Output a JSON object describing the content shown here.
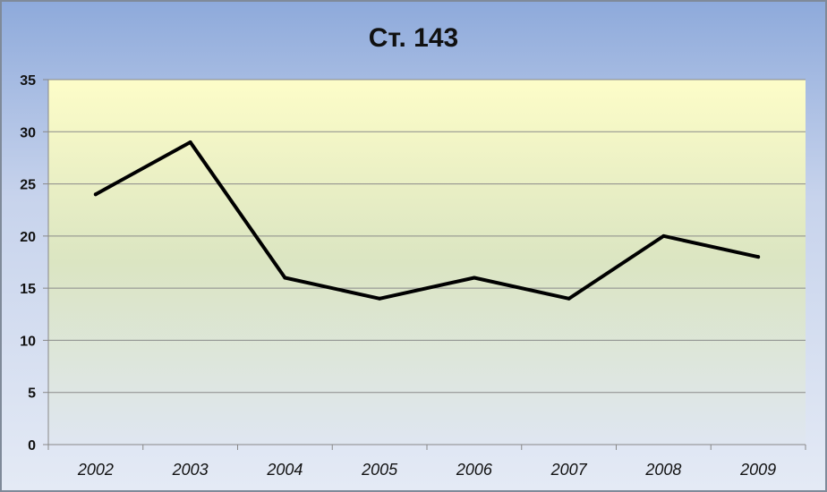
{
  "chart_data": {
    "type": "line",
    "title": "Ст. 143",
    "xlabel": "",
    "ylabel": "",
    "categories": [
      "2002",
      "2003",
      "2004",
      "2005",
      "2006",
      "2007",
      "2008",
      "2009"
    ],
    "series": [
      {
        "values": [
          24,
          29,
          16,
          14,
          16,
          14,
          20,
          18
        ]
      }
    ],
    "ylim": [
      0,
      35
    ],
    "yticks": [
      0,
      5,
      10,
      15,
      20,
      25,
      30,
      35
    ],
    "grid": true,
    "legend": "none",
    "colors": {
      "line": "#000000",
      "grid": "#8a8a8a",
      "plot_top": "#fdfdc8",
      "plot_mid": "#dbe5c2",
      "plot_bottom": "#dfe6f1"
    }
  }
}
